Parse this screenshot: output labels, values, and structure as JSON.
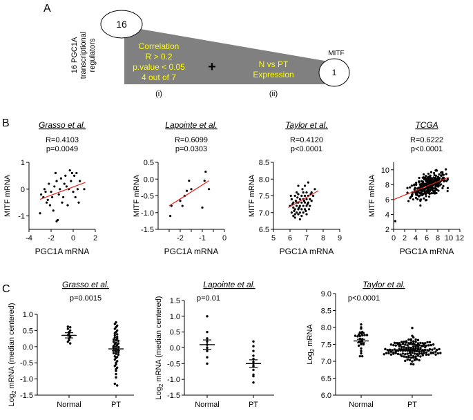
{
  "panel_labels": {
    "a": "A",
    "b": "B",
    "c": "C"
  },
  "panel_a": {
    "start_count": "16",
    "end_count": "1",
    "end_label": "MITF",
    "side_label_1": "16 PGC1A",
    "side_label_2": "transcriptional",
    "side_label_3": "regulators",
    "criteria_1": [
      "Correlation",
      "R > 0.2",
      "p.value < 0.05",
      "4 out of 7"
    ],
    "plus": "+",
    "criteria_2": [
      "N vs PT",
      "Expression"
    ],
    "step_1": "(i)",
    "step_2": "(ii)",
    "colors": {
      "wedge": "#808080",
      "text": "#ffff00"
    }
  },
  "chart_data": [
    {
      "type": "scatter",
      "panel": "B1",
      "title": "Grasso et al.",
      "stat_r": "R=0.4103",
      "stat_p": "p=0.0049",
      "xlabel": "PGC1A mRNA",
      "ylabel": "MITF mRNA",
      "xlim": [
        -4,
        2
      ],
      "ylim": [
        -1.5,
        1
      ],
      "xticks": [
        -4,
        -2,
        0,
        2
      ],
      "yticks": [
        -1,
        0,
        1
      ],
      "xtick_labels": [
        "-4",
        "-2",
        "0",
        "2"
      ],
      "ytick_labels": [
        "-1",
        "0",
        "1"
      ],
      "fit": [
        [
          -3,
          -0.38
        ],
        [
          1.1,
          0.25
        ]
      ],
      "points": [
        [
          -3.0,
          -0.9
        ],
        [
          -2.9,
          -0.2
        ],
        [
          -2.7,
          -0.3
        ],
        [
          -2.6,
          0.0
        ],
        [
          -2.5,
          -0.1
        ],
        [
          -2.4,
          -0.5
        ],
        [
          -2.3,
          -0.4
        ],
        [
          -2.2,
          0.2
        ],
        [
          -2.0,
          -0.1
        ],
        [
          -1.9,
          -0.3
        ],
        [
          -1.8,
          -0.8
        ],
        [
          -1.7,
          0.1
        ],
        [
          -1.6,
          0.6
        ],
        [
          -1.5,
          -1.2
        ],
        [
          -1.4,
          -1.15
        ],
        [
          -1.3,
          -0.2
        ],
        [
          -1.2,
          0.0
        ],
        [
          -1.1,
          0.4
        ],
        [
          -1.0,
          -0.5
        ],
        [
          -0.9,
          -0.3
        ],
        [
          -0.8,
          0.2
        ],
        [
          -0.7,
          0.5
        ],
        [
          -0.6,
          0.1
        ],
        [
          -0.5,
          -0.6
        ],
        [
          -0.4,
          0.0
        ],
        [
          -0.3,
          0.7
        ],
        [
          -0.2,
          0.3
        ],
        [
          -0.1,
          0.6
        ],
        [
          0.0,
          -0.1
        ],
        [
          0.1,
          0.5
        ],
        [
          0.2,
          -0.3
        ],
        [
          0.3,
          0.6
        ],
        [
          0.4,
          0.0
        ],
        [
          0.5,
          -0.5
        ],
        [
          0.6,
          0.3
        ],
        [
          1.0,
          0.0
        ],
        [
          -2.1,
          -0.6
        ],
        [
          -1.5,
          0.3
        ]
      ]
    },
    {
      "type": "scatter",
      "panel": "B2",
      "title": "Lapointe et al.",
      "stat_r": "R=0.6099",
      "stat_p": "p=0.0303",
      "xlabel": "PGC1A mRNA",
      "ylabel": "MITF mRNA",
      "xlim": [
        -3,
        0
      ],
      "ylim": [
        -1.5,
        0.5
      ],
      "xticks": [
        -2.5,
        -2,
        -1.5,
        -1,
        -0.5,
        0
      ],
      "yticks": [
        -1.5,
        -1,
        -0.5,
        0,
        0.5
      ],
      "xtick_labels": [
        "",
        "-2",
        "",
        "-1",
        "",
        "0"
      ],
      "ytick_labels": [
        "-1.5",
        "-1.0",
        "-0.5",
        "0.0",
        "0.5"
      ],
      "fit": [
        [
          -2.5,
          -0.8
        ],
        [
          -0.7,
          -0.05
        ]
      ],
      "points": [
        [
          -2.45,
          -1.1
        ],
        [
          -2.4,
          -0.8
        ],
        [
          -2.0,
          -0.65
        ],
        [
          -1.9,
          -0.8
        ],
        [
          -1.8,
          -0.5
        ],
        [
          -1.7,
          -0.35
        ],
        [
          -1.6,
          -0.05
        ],
        [
          -1.5,
          -0.3
        ],
        [
          -1.0,
          -0.85
        ],
        [
          -0.9,
          -0.05
        ],
        [
          -0.85,
          0.22
        ],
        [
          -0.7,
          -0.3
        ]
      ]
    },
    {
      "type": "scatter",
      "panel": "B3",
      "title": "Taylor et al.",
      "stat_r": "R=0.4120",
      "stat_p": "p<0.0001",
      "xlabel": "PGC1A mRNA",
      "ylabel": "MITF mRNA",
      "xlim": [
        5,
        9
      ],
      "ylim": [
        6.5,
        8.5
      ],
      "xticks": [
        5,
        6,
        7,
        8,
        9
      ],
      "yticks": [
        6.5,
        7,
        7.5,
        8,
        8.5
      ],
      "xtick_labels": [
        "5",
        "6",
        "7",
        "8",
        "9"
      ],
      "ytick_labels": [
        "6.5",
        "7.0",
        "7.5",
        "8.0",
        "8.5"
      ],
      "fit": [
        [
          5.9,
          7.15
        ],
        [
          7.7,
          7.65
        ]
      ],
      "points": [
        [
          6.0,
          7.2
        ],
        [
          6.1,
          7.0
        ],
        [
          6.1,
          7.4
        ],
        [
          6.2,
          6.9
        ],
        [
          6.2,
          7.3
        ],
        [
          6.3,
          7.1
        ],
        [
          6.3,
          7.5
        ],
        [
          6.3,
          6.85
        ],
        [
          6.4,
          7.2
        ],
        [
          6.4,
          7.6
        ],
        [
          6.4,
          7.0
        ],
        [
          6.5,
          7.3
        ],
        [
          6.5,
          7.1
        ],
        [
          6.5,
          7.8
        ],
        [
          6.5,
          6.95
        ],
        [
          6.6,
          7.4
        ],
        [
          6.6,
          7.2
        ],
        [
          6.6,
          7.0
        ],
        [
          6.7,
          7.5
        ],
        [
          6.7,
          7.3
        ],
        [
          6.7,
          7.1
        ],
        [
          6.7,
          6.9
        ],
        [
          6.8,
          7.6
        ],
        [
          6.8,
          7.4
        ],
        [
          6.8,
          7.2
        ],
        [
          6.8,
          7.0
        ],
        [
          6.9,
          7.3
        ],
        [
          6.9,
          7.5
        ],
        [
          6.9,
          7.1
        ],
        [
          7.0,
          7.4
        ],
        [
          7.0,
          7.6
        ],
        [
          7.0,
          7.2
        ],
        [
          7.0,
          6.95
        ],
        [
          7.1,
          7.5
        ],
        [
          7.1,
          7.3
        ],
        [
          7.1,
          7.9
        ],
        [
          7.2,
          7.4
        ],
        [
          7.2,
          7.2
        ],
        [
          7.3,
          7.6
        ],
        [
          7.3,
          7.35
        ],
        [
          7.4,
          7.5
        ],
        [
          7.5,
          7.7
        ],
        [
          6.05,
          7.5
        ],
        [
          6.15,
          7.25
        ],
        [
          6.25,
          7.05
        ],
        [
          6.35,
          7.35
        ],
        [
          6.45,
          7.45
        ],
        [
          6.55,
          7.15
        ],
        [
          6.6,
          6.8
        ],
        [
          6.75,
          7.7
        ],
        [
          6.85,
          7.35
        ],
        [
          6.95,
          7.05
        ],
        [
          7.05,
          7.25
        ],
        [
          7.15,
          7.1
        ],
        [
          6.4,
          7.3
        ],
        [
          6.9,
          7.8
        ],
        [
          6.2,
          7.15
        ],
        [
          7.25,
          7.55
        ],
        [
          6.3,
          6.95
        ],
        [
          6.5,
          7.55
        ]
      ]
    },
    {
      "type": "scatter",
      "panel": "B4",
      "title": "TCGA",
      "stat_r": "R=0.6222",
      "stat_p": "p<0.0001",
      "xlabel": "PGC1A mRNA",
      "ylabel": "MITF mRNA",
      "xlim": [
        0,
        12
      ],
      "ylim": [
        2,
        11
      ],
      "xticks": [
        0,
        2,
        4,
        6,
        8,
        10,
        12
      ],
      "yticks": [
        2,
        4,
        6,
        8,
        10
      ],
      "xtick_labels": [
        "0",
        "2",
        "4",
        "6",
        "8",
        "10",
        "12"
      ],
      "ytick_labels": [
        "2",
        "4",
        "6",
        "8",
        "10"
      ],
      "fit": [
        [
          0,
          6.0
        ],
        [
          10,
          9.0
        ]
      ],
      "cloud": {
        "n": 320,
        "x_mean": 6.4,
        "x_sd": 1.5,
        "x_min": 2.5,
        "x_max": 9.8,
        "intercept": 6.0,
        "slope": 0.3,
        "noise_sd": 0.7
      },
      "points": [
        [
          0.3,
          3.1
        ],
        [
          3.0,
          6.2
        ],
        [
          2.7,
          5.8
        ]
      ]
    },
    {
      "type": "dot",
      "panel": "C1",
      "title": "Grasso et al.",
      "stat_p": "p=0.0015",
      "ylabel": "Log2 mRNA (median centered)",
      "categories": [
        "Normal",
        "PT"
      ],
      "ylim": [
        -1.5,
        1.0
      ],
      "yticks": [
        -1.5,
        -1,
        -0.5,
        0,
        0.5,
        1
      ],
      "ytick_labels": [
        "-1.5",
        "-1.0",
        "-0.5",
        "0.0",
        "0.5",
        "1.0"
      ],
      "mean": [
        0.35,
        -0.07
      ],
      "sem": [
        0.08,
        0.06
      ],
      "groups": [
        [
          0.62,
          0.6,
          0.55,
          0.5,
          0.45,
          0.4,
          0.35,
          0.3,
          0.25,
          0.2,
          0.15,
          0.1
        ],
        [
          0.75,
          0.7,
          0.65,
          0.6,
          0.55,
          0.5,
          0.45,
          0.42,
          0.38,
          0.35,
          0.3,
          0.28,
          0.25,
          0.22,
          0.2,
          0.18,
          0.15,
          0.12,
          0.1,
          0.08,
          0.05,
          0.02,
          0.0,
          -0.02,
          -0.05,
          -0.08,
          -0.1,
          -0.12,
          -0.15,
          -0.18,
          -0.2,
          -0.22,
          -0.25,
          -0.3,
          -0.32,
          -0.35,
          -0.4,
          -0.45,
          -0.5,
          -0.55,
          -0.6,
          -0.65,
          -0.7,
          -0.75,
          -0.85,
          -0.95,
          -1.15,
          -1.2
        ]
      ]
    },
    {
      "type": "dot",
      "panel": "C2",
      "title": "Lapointe et al.",
      "stat_p": "p=0.01",
      "ylabel": "Log2 mRNA (median centered)",
      "categories": [
        "Normal",
        "PT"
      ],
      "ylim": [
        -1.5,
        1.5
      ],
      "yticks": [
        -1.5,
        -1,
        -0.5,
        0,
        0.5,
        1,
        1.5
      ],
      "ytick_labels": [
        "-1.5",
        "-1.0",
        "-0.5",
        "0.0",
        "0.5",
        "1.0",
        "1.5"
      ],
      "mean": [
        0.1,
        -0.5
      ],
      "sem": [
        0.15,
        0.12
      ],
      "groups": [
        [
          1.0,
          0.5,
          0.3,
          0.2,
          0.1,
          0.0,
          -0.1,
          -0.3,
          -0.5
        ],
        [
          0.2,
          0.05,
          -0.1,
          -0.25,
          -0.35,
          -0.45,
          -0.55,
          -0.6,
          -0.7,
          -0.85,
          -0.9,
          -1.1
        ]
      ]
    },
    {
      "type": "dot",
      "panel": "C3",
      "title": "Taylor et al.",
      "stat_p": "p<0.0001",
      "ylabel": "Log2 mRNA",
      "categories": [
        "Normal",
        "PT"
      ],
      "ylim": [
        6.0,
        9.0
      ],
      "yticks": [
        6,
        6.5,
        7,
        7.5,
        8,
        8.5,
        9
      ],
      "ytick_labels": [
        "6.0",
        "6.5",
        "7.0",
        "7.5",
        "8.0",
        "8.5",
        "9.0"
      ],
      "mean": [
        7.6,
        7.33
      ],
      "sem": [
        0.05,
        0.02
      ],
      "spread": {
        "n": [
          29,
          150
        ],
        "sd": [
          0.25,
          0.2
        ],
        "min": [
          7.15,
          6.85
        ],
        "max": [
          8.3,
          8.0
        ]
      }
    }
  ]
}
